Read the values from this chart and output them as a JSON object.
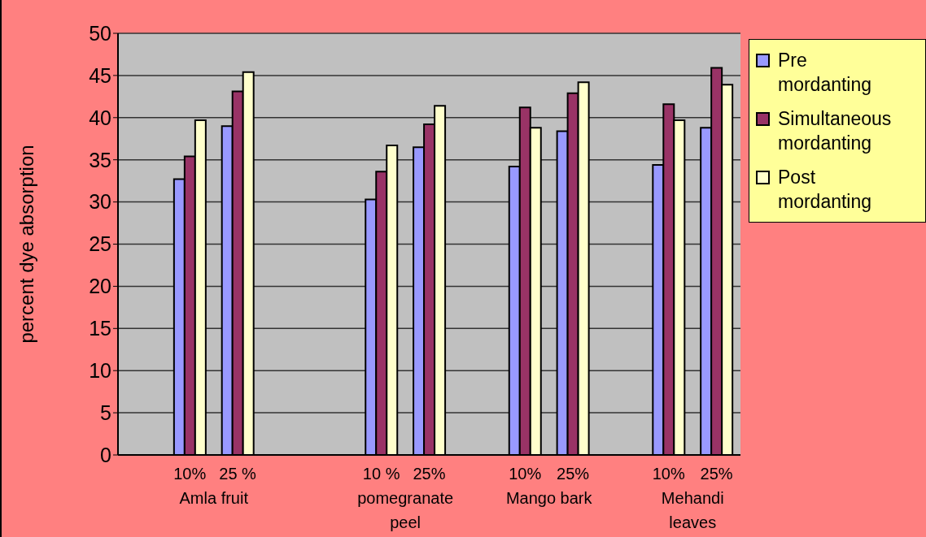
{
  "chart_data": {
    "type": "bar",
    "ylabel": "percent dye absorption",
    "categories": [
      null,
      "10%",
      "25 %",
      null,
      null,
      "10 %",
      "25%",
      null,
      "10%",
      "25%",
      null,
      "10%",
      "25%"
    ],
    "annotations": [
      "Amla fruit",
      "pomegranate peel",
      "Mango bark",
      "Mehandi leaves"
    ],
    "series": [
      {
        "name": "Pre mordanting",
        "color": "#9999ff",
        "values": [
          null,
          32.7,
          39.0,
          null,
          null,
          30.3,
          36.5,
          null,
          34.2,
          38.4,
          null,
          34.4,
          38.8
        ]
      },
      {
        "name": "Simultaneous mordanting",
        "color": "#993366",
        "values": [
          null,
          35.4,
          43.1,
          null,
          null,
          33.6,
          39.2,
          null,
          41.2,
          42.9,
          null,
          41.6,
          45.9
        ]
      },
      {
        "name": "Post mordanting",
        "color": "#ffffcc",
        "values": [
          null,
          39.7,
          45.4,
          null,
          null,
          36.7,
          41.4,
          null,
          38.8,
          44.2,
          null,
          39.7,
          43.9
        ]
      }
    ],
    "ylim": [
      0,
      50
    ],
    "yticks": [
      0,
      5,
      10,
      15,
      20,
      25,
      30,
      35,
      40,
      45,
      50
    ],
    "grid": "y",
    "legend": "right"
  }
}
